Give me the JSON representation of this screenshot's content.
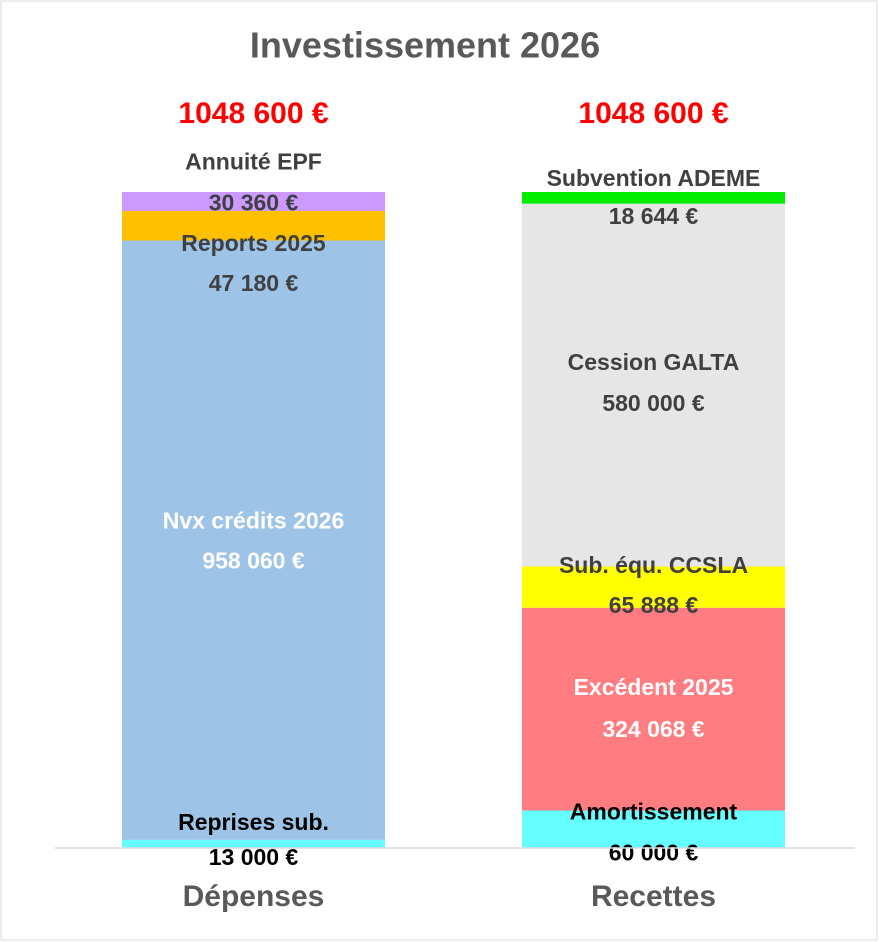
{
  "chart_data": {
    "type": "stacked_bar",
    "title": "Investissement 2026",
    "ylim": [
      0,
      1048600
    ],
    "categories": [
      "Dépenses",
      "Recettes"
    ],
    "totals": [
      1048600,
      1048600
    ],
    "total_labels": [
      "1048 600 €",
      "1048 600 €"
    ],
    "total_color": "#ff0000",
    "bars": [
      {
        "segments": [
          {
            "name": "Reprises sub.",
            "value": 13000,
            "value_label": "13 000 €",
            "color": "#66ffff",
            "label_color": "#000000"
          },
          {
            "name": "Nvx crédits 2026",
            "value": 958060,
            "value_label": "958 060 €",
            "color": "#9dc3e6",
            "label_color": "#ffffff"
          },
          {
            "name": "Reports 2025",
            "value": 47180,
            "value_label": "47 180 €",
            "color": "#ffc000",
            "label_color": "#404040"
          },
          {
            "name": "Annuité EPF",
            "value": 30360,
            "value_label": "30 360 €",
            "color": "#cc99ff",
            "label_color": "#404040"
          }
        ]
      },
      {
        "segments": [
          {
            "name": "Amortissement",
            "value": 60000,
            "value_label": "60 000 €",
            "color": "#66ffff",
            "label_color": "#000000"
          },
          {
            "name": "Excédent 2025",
            "value": 324068,
            "value_label": "324 068 €",
            "color": "#ff7c80",
            "label_color": "#ffffff"
          },
          {
            "name": "Sub. équ. CCSLA",
            "value": 65888,
            "value_label": "65 888 €",
            "color": "#ffff00",
            "label_color": "#404040"
          },
          {
            "name": "Cession GALTA",
            "value": 580000,
            "value_label": "580 000 €",
            "color": "#e7e6e6",
            "label_color": "#404040"
          },
          {
            "name": "Subvention ADEME",
            "value": 18644,
            "value_label": "18 644 €",
            "color": "#00ee00",
            "label_color": "#404040"
          }
        ]
      }
    ]
  }
}
